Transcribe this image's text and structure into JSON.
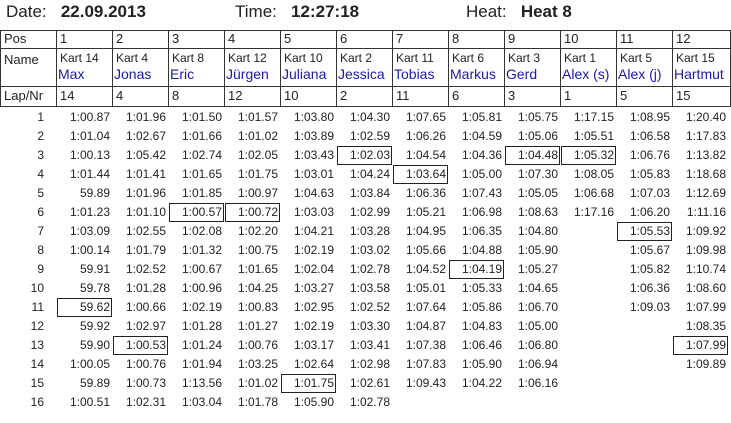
{
  "header": {
    "date_label": "Date:",
    "date": "22.09.2013",
    "time_label": "Time:",
    "time": "12:27:18",
    "heat_label": "Heat:",
    "heat": "Heat 8"
  },
  "table": {
    "pos_label": "Pos",
    "positions": [
      1,
      2,
      3,
      4,
      5,
      6,
      7,
      8,
      9,
      10,
      11,
      12
    ],
    "name_label": "Name",
    "karts": [
      "Kart 14",
      "Kart 4",
      "Kart 8",
      "Kart 12",
      "Kart 10",
      "Kart 2",
      "Kart 11",
      "Kart 6",
      "Kart 3",
      "Kart 1",
      "Kart 5",
      "Kart 15"
    ],
    "drivers": [
      "Max",
      "Jonas",
      "Eric",
      "Jürgen",
      "Juliana",
      "Jessica",
      "Tobias",
      "Markus",
      "Gerd",
      "Alex (s)",
      "Alex (j)",
      "Hartmut"
    ],
    "lapnr_label": "Lap/Nr",
    "lapnr": [
      14,
      4,
      8,
      12,
      10,
      2,
      11,
      6,
      3,
      1,
      5,
      15
    ],
    "laps": [
      {
        "lap": 1,
        "times": [
          "1:00.87",
          "1:01.96",
          "1:01.50",
          "1:01.57",
          "1:03.80",
          "1:04.30",
          "1:07.65",
          "1:05.81",
          "1:05.75",
          "1:17.15",
          "1:08.95",
          "1:20.40"
        ]
      },
      {
        "lap": 2,
        "times": [
          "1:01.04",
          "1:02.67",
          "1:01.66",
          "1:01.02",
          "1:03.89",
          "1:02.59",
          "1:06.26",
          "1:04.59",
          "1:05.06",
          "1:05.51",
          "1:06.58",
          "1:17.83"
        ]
      },
      {
        "lap": 3,
        "times": [
          "1:00.13",
          "1:05.42",
          "1:02.74",
          "1:02.05",
          "1:03.43",
          "1:02.03",
          "1:04.54",
          "1:04.36",
          "1:04.48",
          "1:05.32",
          "1:06.76",
          "1:13.82"
        ]
      },
      {
        "lap": 4,
        "times": [
          "1:01.44",
          "1:01.41",
          "1:01.65",
          "1:01.75",
          "1:03.01",
          "1:04.24",
          "1:03.64",
          "1:05.00",
          "1:07.30",
          "1:08.05",
          "1:05.83",
          "1:18.68"
        ]
      },
      {
        "lap": 5,
        "times": [
          "59.89",
          "1:01.96",
          "1:01.85",
          "1:00.97",
          "1:04.63",
          "1:03.84",
          "1:06.36",
          "1:07.43",
          "1:05.05",
          "1:06.68",
          "1:07.03",
          "1:12.69"
        ]
      },
      {
        "lap": 6,
        "times": [
          "1:01.23",
          "1:01.10",
          "1:00.57",
          "1:00.72",
          "1:03.03",
          "1:02.99",
          "1:05.21",
          "1:06.98",
          "1:08.63",
          "1:17.16",
          "1:06.20",
          "1:11.16"
        ]
      },
      {
        "lap": 7,
        "times": [
          "1:03.09",
          "1:02.55",
          "1:02.08",
          "1:02.20",
          "1:04.21",
          "1:03.28",
          "1:04.95",
          "1:06.35",
          "1:04.80",
          null,
          "1:05.53",
          "1:09.92"
        ]
      },
      {
        "lap": 8,
        "times": [
          "1:00.14",
          "1:01.79",
          "1:01.32",
          "1:00.75",
          "1:02.19",
          "1:03.02",
          "1:05.66",
          "1:04.88",
          "1:05.90",
          null,
          "1:05.67",
          "1:09.98"
        ]
      },
      {
        "lap": 9,
        "times": [
          "59.91",
          "1:02.52",
          "1:00.67",
          "1:01.65",
          "1:02.04",
          "1:02.78",
          "1:04.52",
          "1:04.19",
          "1:05.27",
          null,
          "1:05.82",
          "1:10.74"
        ]
      },
      {
        "lap": 10,
        "times": [
          "59.78",
          "1:01.28",
          "1:00.96",
          "1:04.25",
          "1:03.27",
          "1:03.58",
          "1:05.01",
          "1:05.33",
          "1:04.65",
          null,
          "1:06.36",
          "1:08.60"
        ]
      },
      {
        "lap": 11,
        "times": [
          "59.62",
          "1:00.66",
          "1:02.19",
          "1:00.83",
          "1:02.95",
          "1:02.52",
          "1:07.64",
          "1:05.86",
          "1:06.70",
          null,
          "1:09.03",
          "1:07.99"
        ]
      },
      {
        "lap": 12,
        "times": [
          "59.92",
          "1:02.97",
          "1:01.28",
          "1:01.27",
          "1:02.19",
          "1:03.30",
          "1:04.87",
          "1:04.83",
          "1:05.00",
          null,
          null,
          "1:08.35"
        ]
      },
      {
        "lap": 13,
        "times": [
          "59.90",
          "1:00.53",
          "1:01.24",
          "1:00.76",
          "1:03.17",
          "1:03.41",
          "1:07.38",
          "1:06.46",
          "1:06.80",
          null,
          null,
          "1:07.99"
        ]
      },
      {
        "lap": 14,
        "times": [
          "1:00.05",
          "1:00.76",
          "1:01.94",
          "1:03.25",
          "1:02.64",
          "1:02.98",
          "1:07.83",
          "1:05.90",
          "1:06.94",
          null,
          null,
          "1:09.89"
        ]
      },
      {
        "lap": 15,
        "times": [
          "59.89",
          "1:00.73",
          "1:13.56",
          "1:01.02",
          "1:01.75",
          "1:02.61",
          "1:09.43",
          "1:04.22",
          "1:06.16",
          null,
          null,
          null
        ]
      },
      {
        "lap": 16,
        "times": [
          "1:00.51",
          "1:02.31",
          "1:03.04",
          "1:01.78",
          "1:05.90",
          "1:02.78",
          null,
          null,
          null,
          null,
          null,
          null
        ]
      }
    ]
  }
}
